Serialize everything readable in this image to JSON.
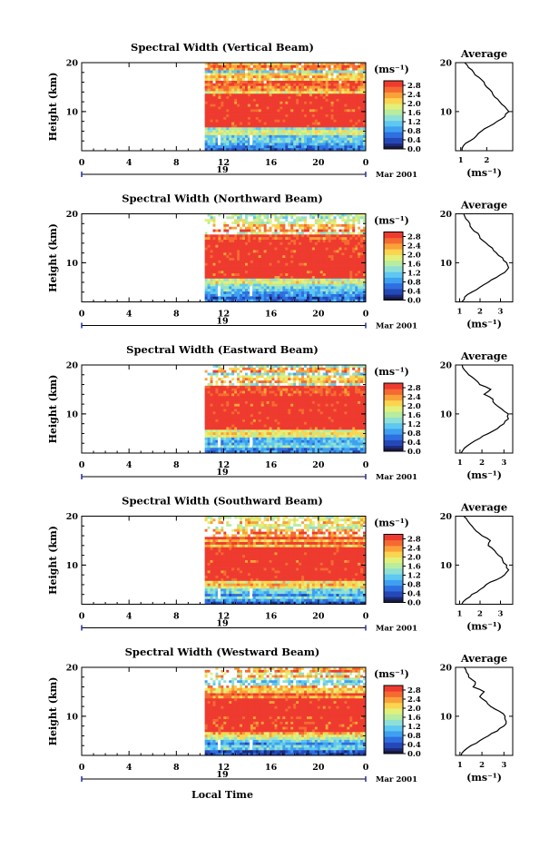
{
  "x_axis_label": "Local Time",
  "colorbar_unit_label": "(ms⁻¹)",
  "average_unit_label": "(ms⁻¹)",
  "colors": {
    "colormap": [
      "#1c2a78",
      "#2548b8",
      "#2f6fe0",
      "#3fa0f0",
      "#5ec8f2",
      "#8ee0d6",
      "#b8ec9e",
      "#e2f07a",
      "#fbd450",
      "#f9a23a",
      "#f56a32",
      "#ee3b2f"
    ],
    "background": "#ffffff",
    "axes": "#000000"
  },
  "chart_data": [
    {
      "type": "heatmap",
      "title": "Spectral Width (Vertical Beam)",
      "ylabel": "Height (km)",
      "y_ticks": [
        "10",
        "20"
      ],
      "x_ticks": [
        "0",
        "4",
        "8",
        "12",
        "16",
        "20",
        "0"
      ],
      "date_label": "19",
      "month_label": "Mar 2001",
      "colorbar_ticks": [
        "2.8",
        "2.4",
        "2.0",
        "1.6",
        "1.2",
        "0.8",
        "0.4",
        "0.0"
      ],
      "colorbar_range": [
        0.0,
        3.0
      ],
      "xlim": [
        0,
        24
      ],
      "ylim": [
        2,
        20
      ],
      "data_start_hour": 10.4,
      "average_title": "Average",
      "average_x_ticks": [
        "1",
        "2"
      ],
      "average_xlim": [
        0.8,
        3.0
      ],
      "average_profile": [
        [
          1.05,
          2
        ],
        [
          1.1,
          3
        ],
        [
          1.35,
          4
        ],
        [
          1.6,
          5
        ],
        [
          1.8,
          6
        ],
        [
          2.1,
          7
        ],
        [
          2.4,
          8
        ],
        [
          2.7,
          9
        ],
        [
          2.85,
          10
        ],
        [
          2.7,
          11
        ],
        [
          2.5,
          12
        ],
        [
          2.3,
          13
        ],
        [
          2.2,
          14
        ],
        [
          2.0,
          15
        ],
        [
          1.9,
          16
        ],
        [
          1.7,
          17
        ],
        [
          1.5,
          18
        ],
        [
          1.3,
          19
        ],
        [
          1.15,
          20
        ]
      ]
    },
    {
      "type": "heatmap",
      "title": "Spectral Width (Northward Beam)",
      "ylabel": "Height (km)",
      "y_ticks": [
        "10",
        "20"
      ],
      "x_ticks": [
        "0",
        "4",
        "8",
        "12",
        "16",
        "20",
        "0"
      ],
      "date_label": "19",
      "month_label": "Mar 2001",
      "colorbar_ticks": [
        "2.8",
        "2.4",
        "2.0",
        "1.6",
        "1.2",
        "0.8",
        "0.4",
        "0.0"
      ],
      "colorbar_range": [
        0.0,
        3.0
      ],
      "xlim": [
        0,
        24
      ],
      "ylim": [
        2,
        20
      ],
      "data_start_hour": 10.4,
      "average_title": "Average",
      "average_x_ticks": [
        "1",
        "2",
        "3"
      ],
      "average_xlim": [
        0.8,
        3.6
      ],
      "average_profile": [
        [
          1.1,
          2
        ],
        [
          1.25,
          3
        ],
        [
          1.6,
          4
        ],
        [
          2.0,
          5
        ],
        [
          2.4,
          6
        ],
        [
          2.8,
          7
        ],
        [
          3.2,
          8
        ],
        [
          3.4,
          9
        ],
        [
          3.3,
          10
        ],
        [
          3.1,
          11
        ],
        [
          2.8,
          12
        ],
        [
          2.6,
          13
        ],
        [
          2.3,
          14
        ],
        [
          2.0,
          15
        ],
        [
          1.9,
          16
        ],
        [
          1.6,
          17
        ],
        [
          1.5,
          18
        ],
        [
          1.3,
          19
        ],
        [
          1.2,
          20
        ]
      ]
    },
    {
      "type": "heatmap",
      "title": "Spectral Width (Eastward Beam)",
      "ylabel": "Height (km)",
      "y_ticks": [
        "10",
        "20"
      ],
      "x_ticks": [
        "0",
        "4",
        "8",
        "12",
        "16",
        "20",
        "0"
      ],
      "date_label": "19",
      "month_label": "Mar 2001",
      "colorbar_ticks": [
        "2.8",
        "2.4",
        "2.0",
        "1.6",
        "1.2",
        "0.8",
        "0.4",
        "0.0"
      ],
      "colorbar_range": [
        0.0,
        3.0
      ],
      "xlim": [
        0,
        24
      ],
      "ylim": [
        2,
        20
      ],
      "data_start_hour": 10.4,
      "average_title": "Average",
      "average_x_ticks": [
        "1",
        "2",
        "3"
      ],
      "average_xlim": [
        0.8,
        3.4
      ],
      "average_profile": [
        [
          1.05,
          2
        ],
        [
          1.2,
          3
        ],
        [
          1.5,
          4
        ],
        [
          1.9,
          5
        ],
        [
          2.3,
          6
        ],
        [
          2.7,
          7
        ],
        [
          3.0,
          8
        ],
        [
          3.2,
          9
        ],
        [
          3.2,
          10
        ],
        [
          2.9,
          11
        ],
        [
          2.6,
          12
        ],
        [
          2.5,
          13
        ],
        [
          2.1,
          14
        ],
        [
          2.4,
          15
        ],
        [
          1.9,
          16
        ],
        [
          1.7,
          17
        ],
        [
          1.4,
          18
        ],
        [
          1.2,
          19
        ],
        [
          1.1,
          20
        ]
      ]
    },
    {
      "type": "heatmap",
      "title": "Spectral Width (Southward Beam)",
      "ylabel": "Height (km)",
      "y_ticks": [
        "10",
        "20"
      ],
      "x_ticks": [
        "0",
        "4",
        "8",
        "12",
        "16",
        "20",
        "0"
      ],
      "date_label": "19",
      "month_label": "Mar 2001",
      "colorbar_ticks": [
        "2.8",
        "2.4",
        "2.0",
        "1.6",
        "1.2",
        "0.8",
        "0.4",
        "0.0"
      ],
      "colorbar_range": [
        0.0,
        3.0
      ],
      "xlim": [
        0,
        24
      ],
      "ylim": [
        2,
        20
      ],
      "data_start_hour": 10.4,
      "average_title": "Average",
      "average_x_ticks": [
        "1",
        "2",
        "3"
      ],
      "average_xlim": [
        0.8,
        3.6
      ],
      "average_profile": [
        [
          1.1,
          2
        ],
        [
          1.3,
          3
        ],
        [
          1.6,
          4
        ],
        [
          2.0,
          5
        ],
        [
          2.3,
          6
        ],
        [
          2.8,
          7
        ],
        [
          3.2,
          8
        ],
        [
          3.4,
          9
        ],
        [
          3.3,
          10
        ],
        [
          3.1,
          11
        ],
        [
          2.9,
          12
        ],
        [
          2.7,
          13
        ],
        [
          2.4,
          14
        ],
        [
          2.5,
          15
        ],
        [
          2.1,
          16
        ],
        [
          1.8,
          17
        ],
        [
          1.6,
          18
        ],
        [
          1.4,
          19
        ],
        [
          1.2,
          20
        ]
      ]
    },
    {
      "type": "heatmap",
      "title": "Spectral Width (Westward Beam)",
      "ylabel": "Height (km)",
      "y_ticks": [
        "10",
        "20"
      ],
      "x_ticks": [
        "0",
        "4",
        "8",
        "12",
        "16",
        "20",
        "0"
      ],
      "date_label": "19",
      "month_label": "Mar 2001",
      "colorbar_ticks": [
        "2.8",
        "2.4",
        "2.0",
        "1.6",
        "1.2",
        "0.8",
        "0.4",
        "0.0"
      ],
      "colorbar_range": [
        0.0,
        3.0
      ],
      "xlim": [
        0,
        24
      ],
      "ylim": [
        2,
        20
      ],
      "data_start_hour": 10.4,
      "average_title": "Average",
      "average_x_ticks": [
        "1",
        "2",
        "3"
      ],
      "average_xlim": [
        0.8,
        3.4
      ],
      "average_profile": [
        [
          1.05,
          2
        ],
        [
          1.2,
          3
        ],
        [
          1.5,
          4
        ],
        [
          1.9,
          5
        ],
        [
          2.3,
          6
        ],
        [
          2.7,
          7
        ],
        [
          3.0,
          8
        ],
        [
          3.1,
          9
        ],
        [
          3.05,
          10
        ],
        [
          2.8,
          11
        ],
        [
          2.4,
          12
        ],
        [
          2.2,
          13
        ],
        [
          1.9,
          14
        ],
        [
          2.1,
          15
        ],
        [
          1.6,
          16
        ],
        [
          1.7,
          17
        ],
        [
          1.4,
          18
        ],
        [
          1.3,
          19
        ],
        [
          1.2,
          20
        ]
      ]
    }
  ]
}
